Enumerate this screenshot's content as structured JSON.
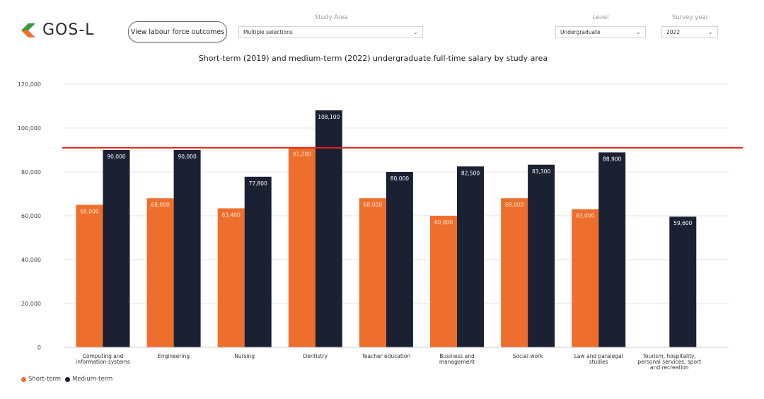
{
  "header": {
    "logo_text": "GOS-L",
    "button_label": "View labour force outcomes"
  },
  "filters": {
    "study_area": {
      "label": "Study Area",
      "value": "Multiple selections"
    },
    "level": {
      "label": "Level",
      "value": "Undergraduate"
    },
    "survey_year": {
      "label": "Survey year",
      "value": "2022"
    }
  },
  "colors": {
    "short_term": "#EE6F2D",
    "medium_term": "#1B2033",
    "reference_line": "#E8231C",
    "logo_green": "#3C9A3F",
    "logo_orange": "#EE6F2D"
  },
  "chart_data": {
    "type": "bar",
    "title": "Short-term (2019) and medium-term (2022) undergraduate full-time salary by study area",
    "categories": [
      [
        "Computing and",
        "information systems"
      ],
      [
        "Engineering"
      ],
      [
        "Nursing"
      ],
      [
        "Dentistry"
      ],
      [
        "Teacher education"
      ],
      [
        "Business and",
        "management"
      ],
      [
        "Social work"
      ],
      [
        "Law and paralegal",
        "studies"
      ],
      [
        "Tourism, hospitality,",
        "personal services, sport",
        "and recreation"
      ]
    ],
    "series": [
      {
        "name": "Short-term",
        "values": [
          65000,
          68000,
          63400,
          91200,
          68000,
          60000,
          68000,
          63000,
          null
        ],
        "labels": [
          "65,000",
          "68,000",
          "63,400",
          "91,200",
          "68,000",
          "60,000",
          "68,000",
          "63,000",
          ""
        ]
      },
      {
        "name": "Medium-term",
        "values": [
          90000,
          90000,
          77800,
          108100,
          80000,
          82500,
          83300,
          88900,
          59600
        ],
        "labels": [
          "90,000",
          "90,000",
          "77,800",
          "108,100",
          "80,000",
          "82,500",
          "83,300",
          "88,900",
          "59,600"
        ]
      }
    ],
    "reference_line": 91000,
    "ylim": [
      0,
      120000
    ],
    "yticks": [
      0,
      20000,
      40000,
      60000,
      80000,
      100000,
      120000
    ],
    "ytick_labels": [
      "0",
      "20,000",
      "40,000",
      "60,000",
      "80,000",
      "100,000",
      "120,000"
    ],
    "grid": true,
    "legend": "bottom-left"
  }
}
